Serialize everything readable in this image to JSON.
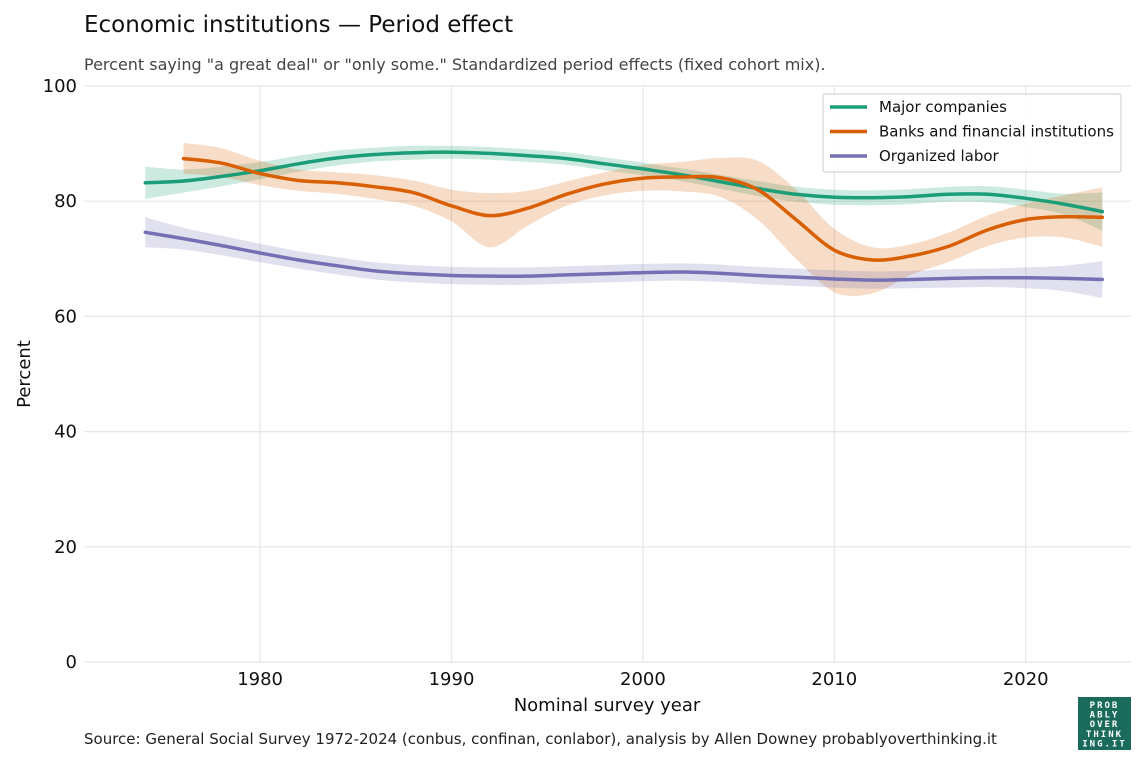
{
  "chart_data": {
    "type": "line",
    "title": "Economic institutions — Period effect",
    "subtitle": "Percent saying \"a great deal\" or \"only some.\" Standardized period effects (fixed cohort mix).",
    "xlabel": "Nominal survey year",
    "ylabel": "Percent",
    "xlim": [
      1970.8,
      2025.5
    ],
    "ylim": [
      0,
      100
    ],
    "xticks": [
      1980,
      1990,
      2000,
      2010,
      2020
    ],
    "yticks": [
      0,
      20,
      40,
      60,
      80,
      100
    ],
    "grid": true,
    "legend_position": "top-right",
    "series": [
      {
        "name": "Major companies",
        "color": "#1b9e77",
        "x": [
          1974,
          1976,
          1978,
          1980,
          1982,
          1984,
          1986,
          1988,
          1990,
          1992,
          1994,
          1996,
          1998,
          2000,
          2002,
          2004,
          2006,
          2008,
          2010,
          2012,
          2014,
          2016,
          2018,
          2020,
          2022,
          2024
        ],
        "y": [
          83.2,
          83.5,
          84.3,
          85.3,
          86.5,
          87.5,
          88.1,
          88.4,
          88.5,
          88.3,
          87.9,
          87.4,
          86.5,
          85.6,
          84.6,
          83.4,
          82.2,
          81.2,
          80.7,
          80.6,
          80.8,
          81.2,
          81.2,
          80.5,
          79.5,
          78.2
        ],
        "upper": [
          86.0,
          85.5,
          86.0,
          86.8,
          87.9,
          88.8,
          89.3,
          89.6,
          89.6,
          89.4,
          89.0,
          88.5,
          87.6,
          86.7,
          85.7,
          84.6,
          83.5,
          82.5,
          82.0,
          81.9,
          82.1,
          82.5,
          82.6,
          82.0,
          81.3,
          81.5
        ],
        "lower": [
          80.4,
          81.5,
          82.6,
          83.8,
          85.1,
          86.2,
          86.9,
          87.2,
          87.4,
          87.2,
          86.8,
          86.3,
          85.4,
          84.5,
          83.5,
          82.2,
          80.9,
          79.9,
          79.4,
          79.3,
          79.5,
          79.9,
          79.8,
          79.0,
          77.7,
          74.9
        ]
      },
      {
        "name": "Banks and financial institutions",
        "color": "#d95f02",
        "x": [
          1976,
          1978,
          1980,
          1982,
          1984,
          1986,
          1988,
          1990,
          1992,
          1994,
          1996,
          1998,
          2000,
          2002,
          2004,
          2006,
          2008,
          2010,
          2012,
          2014,
          2016,
          2018,
          2020,
          2022,
          2024
        ],
        "y": [
          87.4,
          86.6,
          84.8,
          83.6,
          83.2,
          82.5,
          81.5,
          79.2,
          77.5,
          78.8,
          81.2,
          83.0,
          84.0,
          84.2,
          84.1,
          82.0,
          76.8,
          71.5,
          69.8,
          70.5,
          72.2,
          75.0,
          76.8,
          77.3,
          77.2
        ],
        "upper": [
          90.1,
          89.2,
          87.0,
          85.5,
          85.0,
          84.5,
          83.6,
          82.0,
          81.4,
          81.8,
          83.4,
          85.0,
          86.3,
          86.8,
          87.5,
          87.0,
          82.0,
          75.2,
          72.0,
          72.5,
          74.6,
          77.5,
          79.6,
          81.0,
          82.4
        ],
        "lower": [
          84.8,
          84.2,
          82.8,
          81.8,
          81.3,
          80.4,
          79.2,
          76.5,
          72.0,
          75.8,
          79.2,
          81.0,
          81.8,
          81.7,
          80.8,
          76.8,
          70.0,
          64.2,
          64.0,
          67.2,
          69.5,
          72.2,
          73.7,
          73.7,
          72.1
        ]
      },
      {
        "name": "Organized labor",
        "color": "#7570b3",
        "x": [
          1974,
          1976,
          1978,
          1980,
          1982,
          1984,
          1986,
          1988,
          1990,
          1992,
          1994,
          1996,
          1998,
          2000,
          2002,
          2004,
          2006,
          2008,
          2010,
          2012,
          2014,
          2016,
          2018,
          2020,
          2022,
          2024
        ],
        "y": [
          74.6,
          73.5,
          72.3,
          71.0,
          69.8,
          68.8,
          67.9,
          67.4,
          67.1,
          67.0,
          67.0,
          67.2,
          67.4,
          67.6,
          67.7,
          67.5,
          67.1,
          66.8,
          66.5,
          66.3,
          66.4,
          66.6,
          66.7,
          66.7,
          66.6,
          66.4
        ],
        "upper": [
          77.2,
          75.4,
          74.0,
          72.6,
          71.3,
          70.3,
          69.4,
          68.9,
          68.6,
          68.5,
          68.5,
          68.7,
          68.9,
          69.1,
          69.2,
          69.0,
          68.6,
          68.3,
          68.0,
          67.8,
          67.9,
          68.2,
          68.3,
          68.5,
          68.8,
          69.6
        ],
        "lower": [
          72.0,
          71.6,
          70.6,
          69.4,
          68.3,
          67.3,
          66.4,
          65.9,
          65.6,
          65.5,
          65.5,
          65.7,
          65.9,
          66.1,
          66.2,
          66.0,
          65.6,
          65.3,
          65.0,
          64.8,
          64.9,
          65.0,
          65.1,
          64.9,
          64.4,
          63.2
        ]
      }
    ],
    "source": "Source: General Social Survey 1972-2024 (conbus, confinan, conlabor), analysis by Allen Downey probablyoverthinking.it"
  },
  "logo": {
    "lines": [
      "PROB",
      "ABLY",
      "OVER",
      "THINK",
      "ING.IT"
    ],
    "background": "#1a6b5c"
  }
}
